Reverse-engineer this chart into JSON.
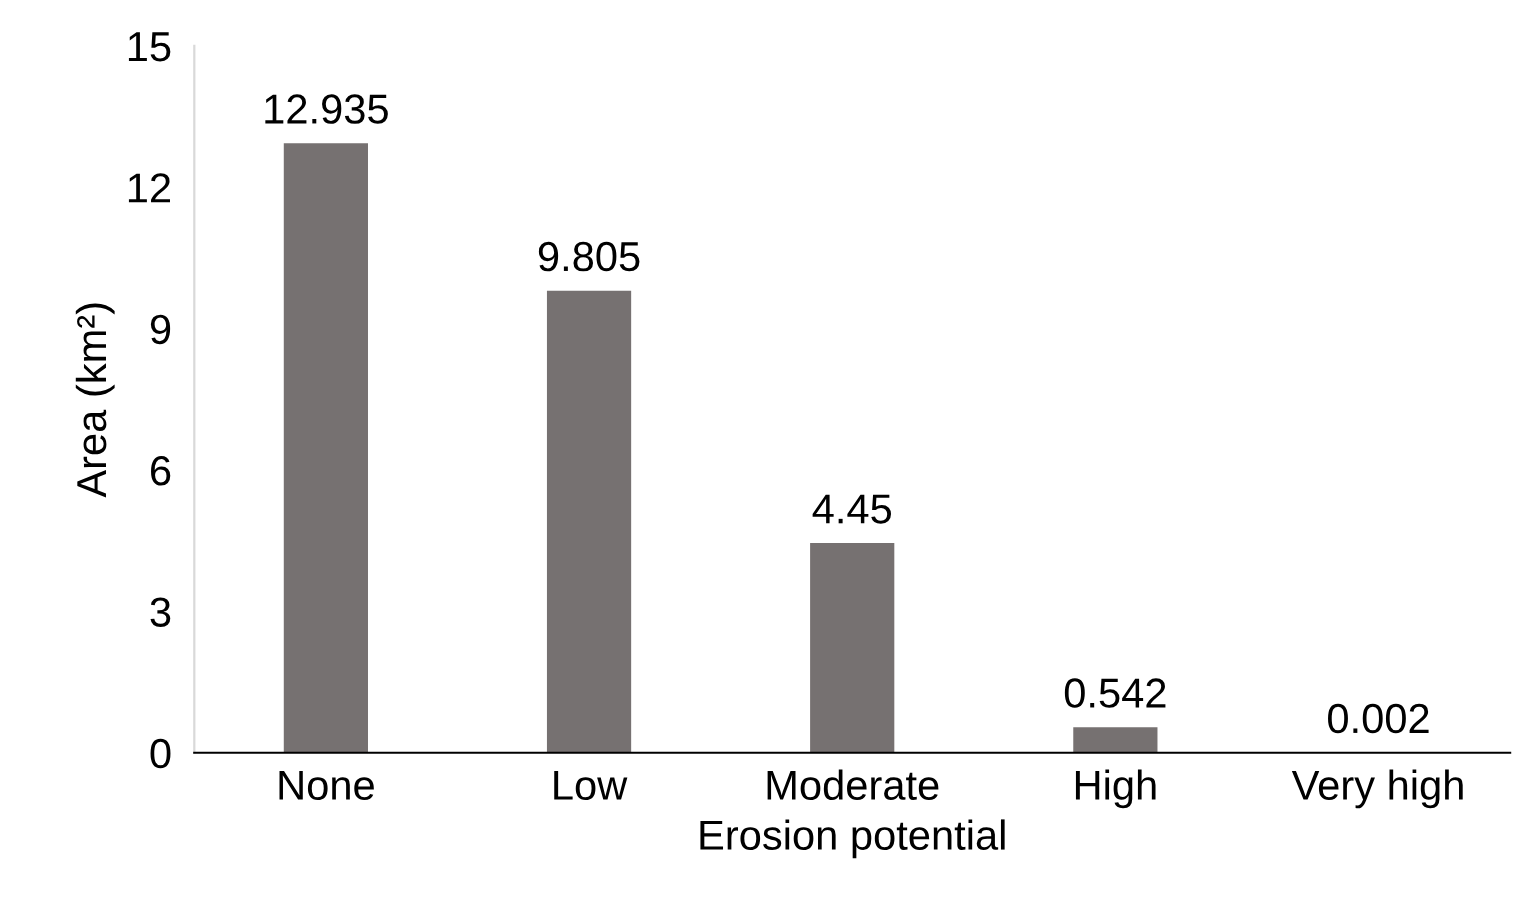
{
  "chart_data": {
    "type": "bar",
    "xlabel": "Erosion potential",
    "ylabel": "Area (km²)",
    "categories": [
      "None",
      "Low",
      "Moderate",
      "High",
      "Very high"
    ],
    "values": [
      12.935,
      9.805,
      4.45,
      0.542,
      0.002
    ],
    "color": "#767171",
    "ylim": [
      0,
      15
    ],
    "yticks": [
      0,
      3,
      6,
      9,
      12,
      15
    ],
    "data_labels": true,
    "grid": false,
    "legend": false
  }
}
